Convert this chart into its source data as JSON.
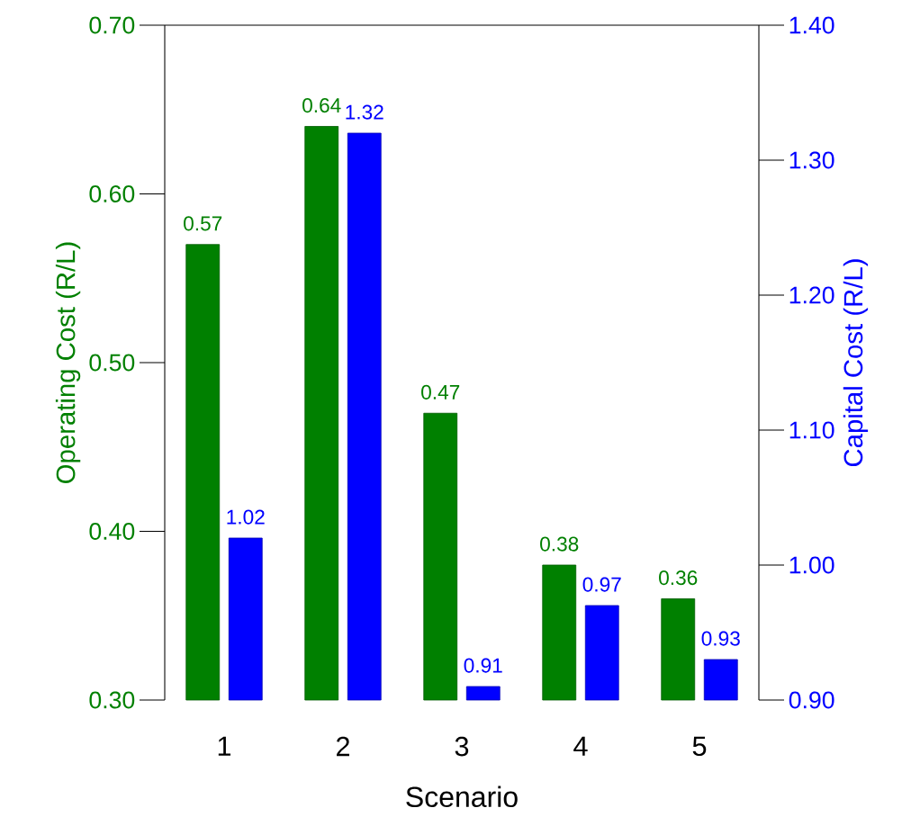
{
  "chart_data": {
    "type": "bar",
    "xlabel": "Scenario",
    "ylabel": "Operating Cost (R/L)",
    "y2label": "Capital Cost (R/L)",
    "categories": [
      "1",
      "2",
      "3",
      "4",
      "5"
    ],
    "series": [
      {
        "color": "#008000",
        "values": [
          0.57,
          0.64,
          0.47,
          0.38,
          0.36
        ]
      },
      {
        "color": "#0000ff",
        "axis": "y2",
        "values": [
          1.02,
          1.32,
          0.91,
          0.97,
          0.93
        ]
      }
    ],
    "ylim": [
      0.3,
      0.7
    ],
    "yticks": [
      {
        "value": 0.3,
        "label": "0.30"
      },
      {
        "value": 0.4,
        "label": "0.40"
      },
      {
        "value": 0.5,
        "label": "0.50"
      },
      {
        "value": 0.6,
        "label": "0.60"
      },
      {
        "value": 0.7,
        "label": "0.70"
      }
    ],
    "y2lim": [
      0.9,
      1.4
    ],
    "y2ticks": [
      {
        "value": 0.9,
        "label": "0.90"
      },
      {
        "value": 1.0,
        "label": "1.00"
      },
      {
        "value": 1.1,
        "label": "1.10"
      },
      {
        "value": 1.2,
        "label": "1.20"
      },
      {
        "value": 1.3,
        "label": "1.30"
      },
      {
        "value": 1.4,
        "label": "1.40"
      }
    ],
    "data_labels": true,
    "grid": false
  }
}
